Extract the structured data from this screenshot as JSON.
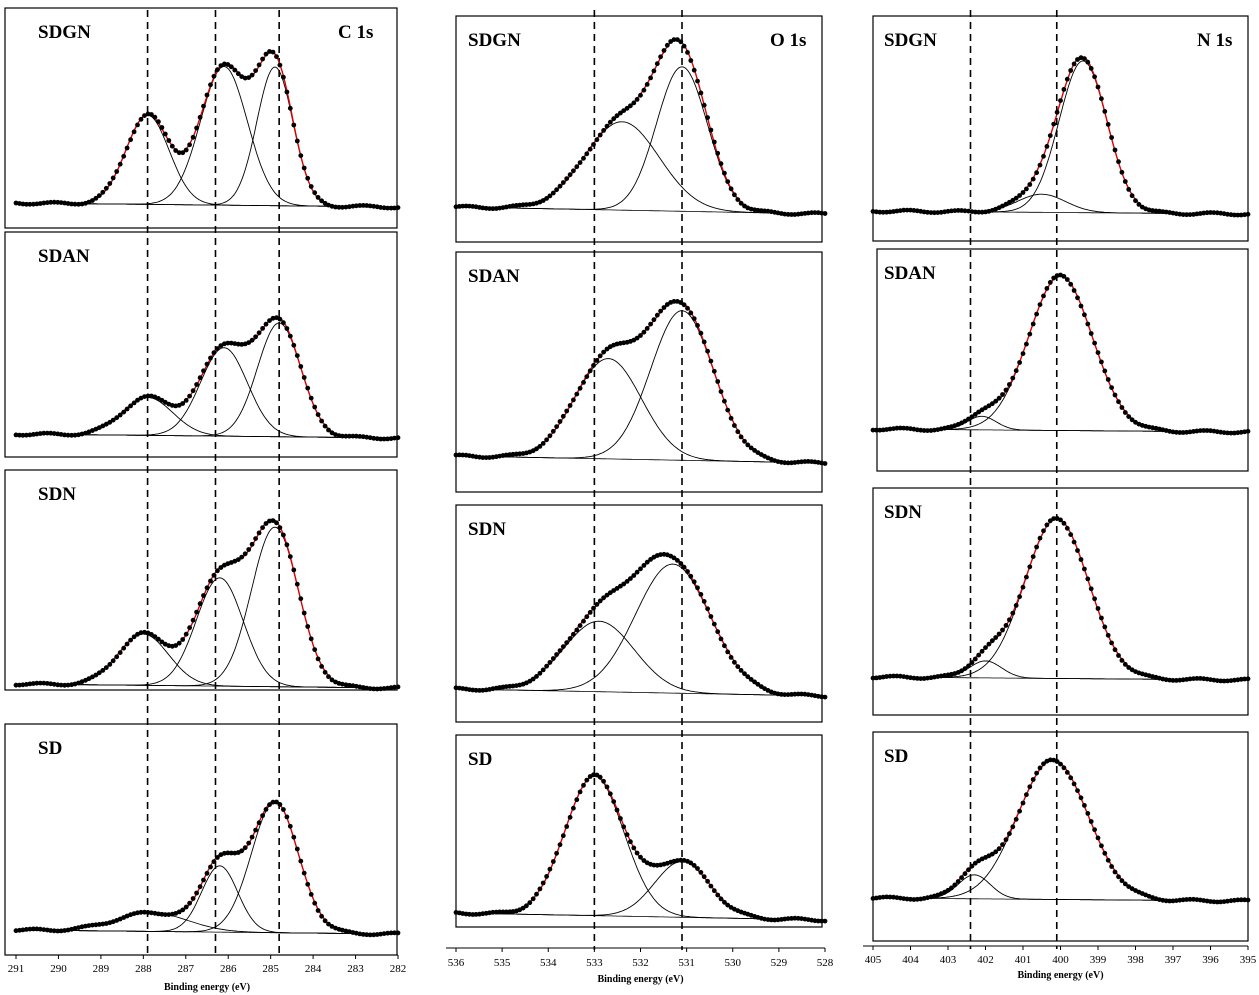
{
  "figure": {
    "xlabel": "Binding energy (eV)",
    "samples": [
      "SDGN",
      "SDAN",
      "SDN",
      "SD"
    ],
    "colors": {
      "envelope": "#e00000",
      "data_points": "#000000",
      "components": "#000000",
      "guides": "#000000"
    }
  },
  "chart_data": [
    {
      "type": "line",
      "region": "C 1s",
      "xlabel": "Binding energy (eV)",
      "xlim": [
        291,
        282
      ],
      "xticks": [
        "291",
        "290",
        "289",
        "288",
        "287",
        "286",
        "285",
        "284",
        "283",
        "282"
      ],
      "reference_lines_eV": [
        287.9,
        286.3,
        284.8
      ],
      "series": [
        "experimental data (points)",
        "fitted envelope (red)",
        "component peaks",
        "background"
      ],
      "panels": [
        {
          "sample": "SDGN",
          "components": [
            {
              "center": 287.9,
              "amplitude": 0.47,
              "fwhm": 1.2
            },
            {
              "center": 286.1,
              "amplitude": 0.73,
              "fwhm": 1.3
            },
            {
              "center": 284.9,
              "amplitude": 0.73,
              "fwhm": 1.0
            }
          ]
        },
        {
          "sample": "SDAN",
          "components": [
            {
              "center": 287.9,
              "amplitude": 0.24,
              "fwhm": 1.4
            },
            {
              "center": 286.1,
              "amplitude": 0.56,
              "fwhm": 1.3
            },
            {
              "center": 284.8,
              "amplitude": 0.72,
              "fwhm": 1.2
            }
          ]
        },
        {
          "sample": "SDN",
          "components": [
            {
              "center": 288.0,
              "amplitude": 0.27,
              "fwhm": 1.4
            },
            {
              "center": 286.2,
              "amplitude": 0.57,
              "fwhm": 1.3
            },
            {
              "center": 284.9,
              "amplitude": 0.84,
              "fwhm": 1.3
            }
          ]
        },
        {
          "sample": "SD",
          "components": [
            {
              "center": 287.8,
              "amplitude": 0.11,
              "fwhm": 2.0
            },
            {
              "center": 286.2,
              "amplitude": 0.39,
              "fwhm": 1.0
            },
            {
              "center": 284.9,
              "amplitude": 0.77,
              "fwhm": 1.3
            }
          ]
        }
      ]
    },
    {
      "type": "line",
      "region": "O 1s",
      "xlabel": "Binding energy (eV)",
      "xlim": [
        536,
        528
      ],
      "xticks": [
        "536",
        "535",
        "534",
        "533",
        "532",
        "531",
        "530",
        "529",
        "528"
      ],
      "reference_lines_eV": [
        533.0,
        531.1
      ],
      "series": [
        "experimental data (points)",
        "fitted envelope (red)",
        "component peaks",
        "background"
      ],
      "panels": [
        {
          "sample": "SDGN",
          "components": [
            {
              "center": 532.4,
              "amplitude": 0.52,
              "fwhm": 1.9
            },
            {
              "center": 531.1,
              "amplitude": 0.85,
              "fwhm": 1.3
            }
          ]
        },
        {
          "sample": "SDAN",
          "components": [
            {
              "center": 532.7,
              "amplitude": 0.59,
              "fwhm": 1.7
            },
            {
              "center": 531.1,
              "amplitude": 0.88,
              "fwhm": 1.6
            }
          ]
        },
        {
          "sample": "SDN",
          "components": [
            {
              "center": 532.9,
              "amplitude": 0.47,
              "fwhm": 1.8
            },
            {
              "center": 531.3,
              "amplitude": 0.86,
              "fwhm": 1.9
            }
          ]
        },
        {
          "sample": "SD",
          "components": [
            {
              "center": 533.0,
              "amplitude": 0.9,
              "fwhm": 1.5
            },
            {
              "center": 531.1,
              "amplitude": 0.36,
              "fwhm": 1.4
            }
          ]
        }
      ]
    },
    {
      "type": "line",
      "region": "N 1s",
      "xlabel": "Binding energy (eV)",
      "xlim": [
        405,
        395
      ],
      "xticks": [
        "405",
        "404",
        "403",
        "402",
        "401",
        "400",
        "399",
        "398",
        "397",
        "396",
        "395"
      ],
      "reference_lines_eV": [
        402.4,
        400.1
      ],
      "series": [
        "experimental data (points)",
        "fitted envelope (red)",
        "component peaks",
        "background"
      ],
      "panels": [
        {
          "sample": "SDGN",
          "components": [
            {
              "center": 400.5,
              "amplitude": 0.11,
              "fwhm": 1.5
            },
            {
              "center": 399.4,
              "amplitude": 0.92,
              "fwhm": 1.5
            }
          ]
        },
        {
          "sample": "SDAN",
          "components": [
            {
              "center": 402.1,
              "amplitude": 0.08,
              "fwhm": 0.9
            },
            {
              "center": 400.0,
              "amplitude": 0.91,
              "fwhm": 2.0
            }
          ]
        },
        {
          "sample": "SDN",
          "components": [
            {
              "center": 402.0,
              "amplitude": 0.1,
              "fwhm": 1.0
            },
            {
              "center": 400.1,
              "amplitude": 0.94,
              "fwhm": 2.0
            }
          ]
        },
        {
          "sample": "SD",
          "components": [
            {
              "center": 402.3,
              "amplitude": 0.16,
              "fwhm": 1.0
            },
            {
              "center": 400.2,
              "amplitude": 0.93,
              "fwhm": 2.2
            }
          ]
        }
      ]
    }
  ]
}
